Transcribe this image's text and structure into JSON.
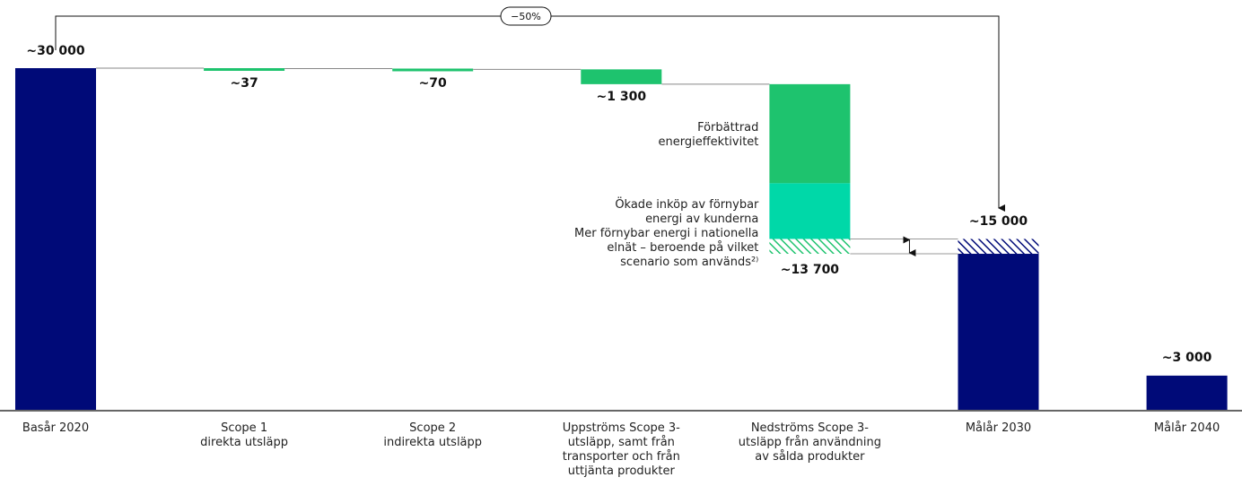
{
  "chart_data": {
    "type": "waterfall",
    "categories": [
      "Basår 2020",
      "Scope 1\ndirekta utsläpp",
      "Scope 2\nindirekta utsläpp",
      "Uppströms Scope 3-\nutsläpp, samt från\ntransporter och från\nuttjänta produkter",
      "Nedströms Scope 3-\nutsläpp från användning\nav sålda produkter",
      "Målår 2030",
      "Målår 2040"
    ],
    "values": [
      30000,
      -37,
      -70,
      -1300,
      null,
      15000,
      3000
    ],
    "value_labels": [
      "~30 000",
      "~37",
      "~70",
      "~1 300",
      null,
      "~15 000",
      "~3 000"
    ],
    "segments": [
      {
        "name": "Förbättrad\nenergieffektivitet",
        "value": -8700,
        "color": "#1ec36e",
        "hatched": false
      },
      {
        "name": "Ökade inköp av förnybar\nenergi av kunderna",
        "value": -4893,
        "color": "#00d8a8",
        "hatched": false
      },
      {
        "name": "Mer förnybar energi i nationella\nelnät – beroende på vilket\nscenario som används²⁾",
        "value": -1300,
        "color": "#1ec36e",
        "hatched": true
      }
    ],
    "range_low": {
      "value": 13700,
      "label": "~13 700"
    },
    "annotation": "−50%",
    "total_color": "#000a78",
    "step_color": "#1ec36e",
    "ylim": [
      0,
      30000
    ]
  }
}
